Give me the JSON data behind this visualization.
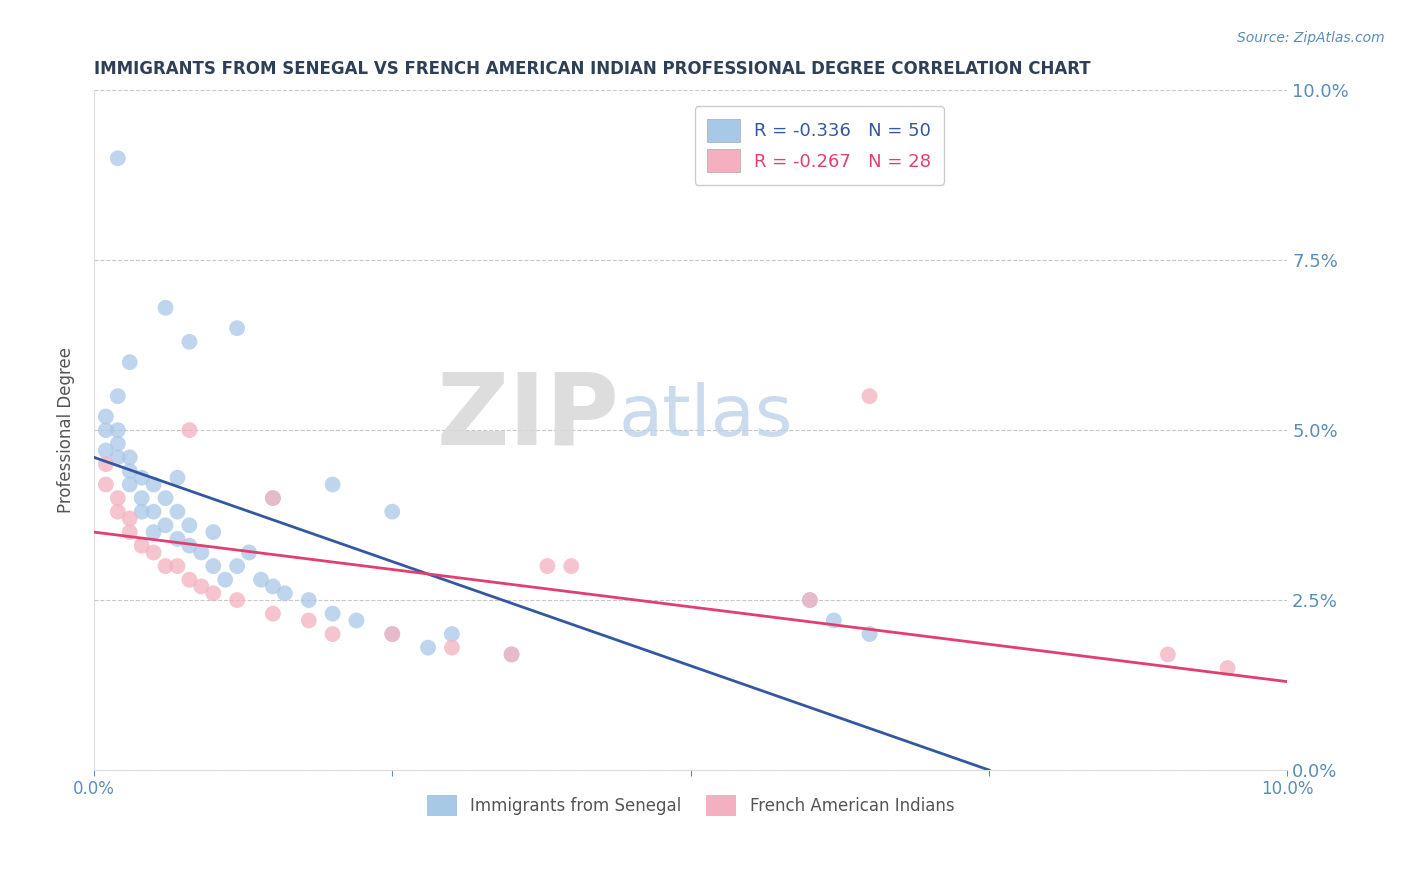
{
  "title": "IMMIGRANTS FROM SENEGAL VS FRENCH AMERICAN INDIAN PROFESSIONAL DEGREE CORRELATION CHART",
  "source_text": "Source: ZipAtlas.com",
  "ylabel": "Professional Degree",
  "xlim": [
    0.0,
    0.1
  ],
  "ylim": [
    0.0,
    0.1
  ],
  "x_ticks": [
    0.0,
    0.025,
    0.05,
    0.075,
    0.1
  ],
  "x_tick_labels": [
    "0.0%",
    "",
    "",
    "",
    "10.0%"
  ],
  "y_tick_labels_right": [
    "0.0%",
    "2.5%",
    "5.0%",
    "7.5%",
    "10.0%"
  ],
  "y_ticks": [
    0.0,
    0.025,
    0.05,
    0.075,
    0.1
  ],
  "blue_color": "#A8C8E8",
  "pink_color": "#F4B0C0",
  "blue_line_color": "#3358A0",
  "pink_line_color": "#E04070",
  "legend_blue_text": "R = -0.336   N = 50",
  "legend_pink_text": "R = -0.267   N = 28",
  "legend_blue_label": "Immigrants from Senegal",
  "legend_pink_label": "French American Indians",
  "blue_scatter_x": [
    0.001,
    0.001,
    0.001,
    0.002,
    0.002,
    0.002,
    0.002,
    0.003,
    0.003,
    0.003,
    0.003,
    0.004,
    0.004,
    0.004,
    0.005,
    0.005,
    0.005,
    0.006,
    0.006,
    0.007,
    0.007,
    0.007,
    0.008,
    0.008,
    0.009,
    0.01,
    0.01,
    0.011,
    0.012,
    0.013,
    0.014,
    0.015,
    0.016,
    0.018,
    0.02,
    0.022,
    0.025,
    0.028,
    0.03,
    0.035,
    0.012,
    0.008,
    0.006,
    0.015,
    0.02,
    0.025,
    0.06,
    0.062,
    0.065,
    0.002
  ],
  "blue_scatter_y": [
    0.047,
    0.05,
    0.052,
    0.046,
    0.048,
    0.05,
    0.055,
    0.042,
    0.044,
    0.046,
    0.06,
    0.038,
    0.04,
    0.043,
    0.035,
    0.038,
    0.042,
    0.036,
    0.04,
    0.034,
    0.038,
    0.043,
    0.033,
    0.036,
    0.032,
    0.03,
    0.035,
    0.028,
    0.03,
    0.032,
    0.028,
    0.027,
    0.026,
    0.025,
    0.023,
    0.022,
    0.02,
    0.018,
    0.02,
    0.017,
    0.065,
    0.063,
    0.068,
    0.04,
    0.042,
    0.038,
    0.025,
    0.022,
    0.02,
    0.09
  ],
  "pink_scatter_x": [
    0.001,
    0.001,
    0.002,
    0.002,
    0.003,
    0.003,
    0.004,
    0.005,
    0.006,
    0.007,
    0.008,
    0.009,
    0.01,
    0.012,
    0.015,
    0.018,
    0.02,
    0.025,
    0.03,
    0.035,
    0.008,
    0.015,
    0.04,
    0.038,
    0.06,
    0.065,
    0.09,
    0.095
  ],
  "pink_scatter_y": [
    0.042,
    0.045,
    0.038,
    0.04,
    0.035,
    0.037,
    0.033,
    0.032,
    0.03,
    0.03,
    0.028,
    0.027,
    0.026,
    0.025,
    0.023,
    0.022,
    0.02,
    0.02,
    0.018,
    0.017,
    0.05,
    0.04,
    0.03,
    0.03,
    0.025,
    0.055,
    0.017,
    0.015
  ],
  "blue_line_x0": 0.0,
  "blue_line_y0": 0.046,
  "blue_line_x1": 0.075,
  "blue_line_y1": 0.0,
  "blue_line_dash_x0": 0.075,
  "blue_line_dash_x1": 0.1,
  "pink_line_x0": 0.0,
  "pink_line_y0": 0.035,
  "pink_line_x1": 0.1,
  "pink_line_y1": 0.013,
  "title_color": "#2E4057",
  "axis_color": "#5B8DB8",
  "tick_color": "#5B8DB8",
  "grid_color": "#C8C8C8",
  "background_color": "#FFFFFF"
}
